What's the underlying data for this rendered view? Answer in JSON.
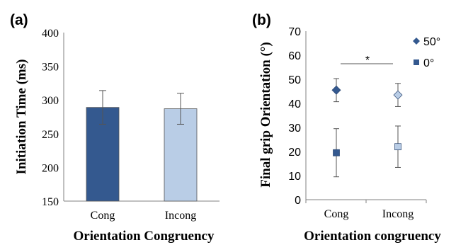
{
  "chart_data": [
    {
      "type": "bar",
      "panel_label": "(a)",
      "categories": [
        "Cong",
        "Incong"
      ],
      "values": [
        289,
        287
      ],
      "error": [
        25,
        23
      ],
      "ylim": [
        150,
        400
      ],
      "yticks": [
        150,
        200,
        250,
        300,
        350,
        400
      ],
      "ylabel": "Initiation Time (ms)",
      "xlabel": "Orientation Congruency",
      "colors": [
        "#34598f",
        "#b9cde6"
      ],
      "grid": false
    },
    {
      "type": "scatter",
      "panel_label": "(b)",
      "categories": [
        "Cong",
        "Incong"
      ],
      "series": [
        {
          "name": "50°",
          "marker": "diamond",
          "values": [
            45.5,
            43.5
          ],
          "error": [
            4.8,
            4.8
          ],
          "colors": [
            "#34598f",
            "#b9cde6"
          ]
        },
        {
          "name": "0°",
          "marker": "square",
          "values": [
            19.5,
            22
          ],
          "error": [
            10,
            8.6
          ],
          "colors": [
            "#34598f",
            "#b9cde6"
          ]
        }
      ],
      "ylim": [
        0,
        70
      ],
      "yticks": [
        0,
        10,
        20,
        30,
        40,
        50,
        60,
        70
      ],
      "ylabel": "Final grip Orientation   (°)",
      "xlabel": "Orientation  congruency",
      "legend_position": "top-right",
      "annotation": "*",
      "grid": false
    }
  ]
}
